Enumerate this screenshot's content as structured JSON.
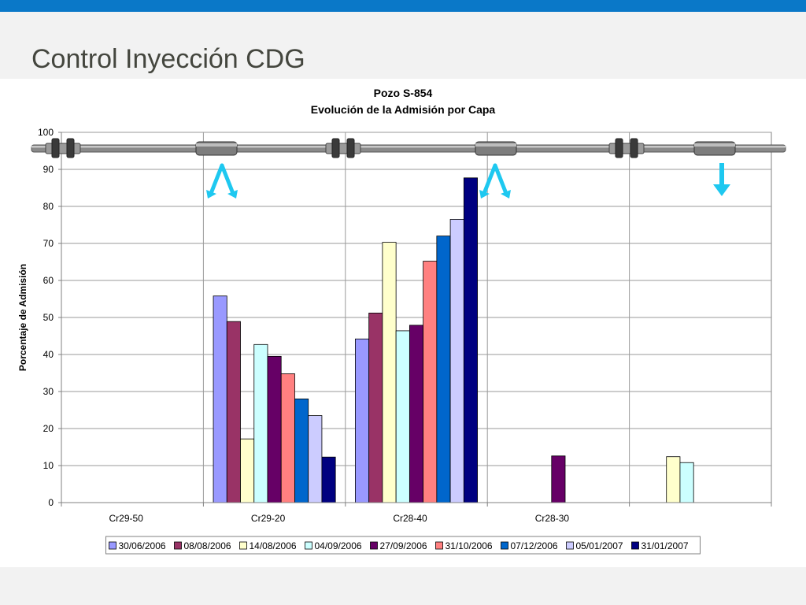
{
  "slide": {
    "title": "Control Inyección CDG",
    "header_color": "#0a78c8"
  },
  "chart_data": {
    "type": "bar",
    "title": "Pozo S-854",
    "subtitle": "Evolución de la Admisión por Capa",
    "xlabel": "",
    "ylabel": "Porcentaje de Admisión",
    "ylim": [
      0,
      100
    ],
    "yticks": [
      0,
      10,
      20,
      30,
      40,
      50,
      60,
      70,
      80,
      90,
      100
    ],
    "grid": true,
    "legend_position": "bottom",
    "categories": [
      "Cr29-50",
      "Cr29-20",
      "Cr28-40",
      "Cr28-30",
      ""
    ],
    "series": [
      {
        "name": "30/06/2006",
        "color": "#9999ff",
        "values": [
          null,
          55.8,
          44.2,
          null,
          null
        ]
      },
      {
        "name": "08/08/2006",
        "color": "#993366",
        "values": [
          null,
          48.9,
          51.2,
          null,
          null
        ]
      },
      {
        "name": "14/08/2006",
        "color": "#ffffcc",
        "values": [
          null,
          17.2,
          70.3,
          null,
          12.4
        ]
      },
      {
        "name": "04/09/2006",
        "color": "#ccffff",
        "values": [
          null,
          42.7,
          46.4,
          null,
          10.8
        ]
      },
      {
        "name": "27/09/2006",
        "color": "#660066",
        "values": [
          null,
          39.5,
          47.9,
          12.6,
          null
        ]
      },
      {
        "name": "31/10/2006",
        "color": "#ff8080",
        "values": [
          null,
          34.8,
          65.2,
          null,
          null
        ]
      },
      {
        "name": "07/12/2006",
        "color": "#0066cc",
        "values": [
          null,
          28.0,
          72.0,
          null,
          null
        ]
      },
      {
        "name": "05/01/2007",
        "color": "#ccccff",
        "values": [
          null,
          23.5,
          76.5,
          null,
          null
        ]
      },
      {
        "name": "31/01/2007",
        "color": "#000080",
        "values": [
          null,
          12.3,
          87.7,
          null,
          null
        ]
      }
    ]
  },
  "overlay": {
    "pipe_color": "#8a8a8a",
    "arrow_color": "#1ec8f0",
    "icons": [
      "pipe-icon",
      "valve-icon",
      "packer-icon",
      "injection-arrow-icon"
    ]
  }
}
